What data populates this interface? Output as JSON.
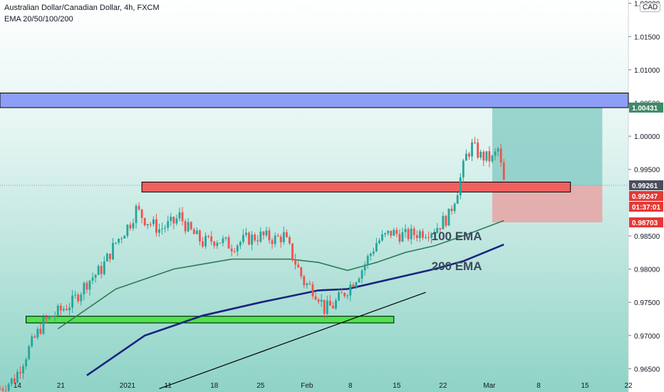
{
  "header": {
    "title": "Australian Dollar/Canadian Dollar, 4h, FXCM",
    "indicators": "EMA 20/50/100/200",
    "currency": "CAD"
  },
  "colors": {
    "background": "#ffffff",
    "up_candle": "#26a69a",
    "down_candle": "#ef5350",
    "ema100": "#2e7d55",
    "ema200": "#1a237e",
    "resistance_zone": "#8c9ef5",
    "support_zone": "#4ce44c",
    "mid_zone": "#f06060",
    "target_zone": "#7fc8c0",
    "stop_zone": "#e8a0a0",
    "price_label": "#4b4f5b",
    "target_label": "#3d8a6a",
    "stop_label": "#e53935"
  },
  "chart_data": {
    "type": "candlestick",
    "timeframe": "4h",
    "ylim": [
      0.9615,
      1.0205
    ],
    "y_ticks": [
      "1.02000",
      "1.01500",
      "1.01000",
      "1.00500",
      "1.00000",
      "0.99500",
      "0.98500",
      "0.98000",
      "0.97500",
      "0.97000",
      "0.96500"
    ],
    "x_ticks": [
      "14",
      "21",
      "2021",
      "11",
      "18",
      "25",
      "Feb",
      "8",
      "15",
      "22",
      "Mar",
      "8",
      "15",
      "22"
    ],
    "price_path": [
      [
        0,
        0.962
      ],
      [
        5,
        0.9635
      ],
      [
        10,
        0.968
      ],
      [
        15,
        0.972
      ],
      [
        20,
        0.9735
      ],
      [
        25,
        0.975
      ],
      [
        30,
        0.978
      ],
      [
        35,
        0.98
      ],
      [
        40,
        0.984
      ],
      [
        45,
        0.987
      ],
      [
        47,
        0.989
      ],
      [
        50,
        0.9875
      ],
      [
        55,
        0.986
      ],
      [
        60,
        0.987
      ],
      [
        62,
        0.988
      ],
      [
        65,
        0.986
      ],
      [
        70,
        0.984
      ],
      [
        75,
        0.9845
      ],
      [
        80,
        0.9835
      ],
      [
        85,
        0.9845
      ],
      [
        90,
        0.985
      ],
      [
        95,
        0.9845
      ],
      [
        98,
        0.985
      ],
      [
        100,
        0.983
      ],
      [
        105,
        0.978
      ],
      [
        108,
        0.977
      ],
      [
        110,
        0.976
      ],
      [
        112,
        0.974
      ],
      [
        115,
        0.9745
      ],
      [
        118,
        0.976
      ],
      [
        120,
        0.977
      ],
      [
        125,
        0.98
      ],
      [
        130,
        0.984
      ],
      [
        135,
        0.9855
      ],
      [
        140,
        0.985
      ],
      [
        145,
        0.9855
      ],
      [
        150,
        0.986
      ],
      [
        155,
        0.988
      ],
      [
        158,
        0.992
      ],
      [
        161,
        0.997
      ],
      [
        163,
        0.9985
      ],
      [
        166,
        0.997
      ],
      [
        170,
        0.9965
      ],
      [
        172,
        0.998
      ],
      [
        174,
        0.993
      ]
    ],
    "ema100_path": [
      [
        20,
        0.971
      ],
      [
        40,
        0.977
      ],
      [
        60,
        0.98
      ],
      [
        80,
        0.9815
      ],
      [
        100,
        0.9815
      ],
      [
        110,
        0.981
      ],
      [
        120,
        0.9798
      ],
      [
        130,
        0.981
      ],
      [
        140,
        0.9825
      ],
      [
        150,
        0.9835
      ],
      [
        160,
        0.985
      ],
      [
        174,
        0.9873
      ]
    ],
    "ema200_path": [
      [
        30,
        0.964
      ],
      [
        50,
        0.97
      ],
      [
        70,
        0.973
      ],
      [
        90,
        0.975
      ],
      [
        110,
        0.9768
      ],
      [
        120,
        0.977
      ],
      [
        130,
        0.978
      ],
      [
        140,
        0.979
      ],
      [
        150,
        0.98
      ],
      [
        160,
        0.9812
      ],
      [
        174,
        0.9837
      ]
    ],
    "trendline": [
      [
        55,
        0.962
      ],
      [
        147,
        0.9765
      ]
    ],
    "zones": {
      "resistance": [
        1.0043,
        1.0065
      ],
      "support": [
        0.9719,
        0.9729
      ],
      "mid": [
        0.9916,
        0.9931
      ]
    },
    "position": {
      "entry": 0.99261,
      "target": 1.00431,
      "stop": 0.98703
    },
    "price_labels": {
      "target": "1.00431",
      "current": "0.99261",
      "bid": "0.99247",
      "countdown": "01:37:01",
      "stop": "0.98703"
    },
    "annotations": [
      "100 EMA",
      "200 EMA"
    ]
  }
}
